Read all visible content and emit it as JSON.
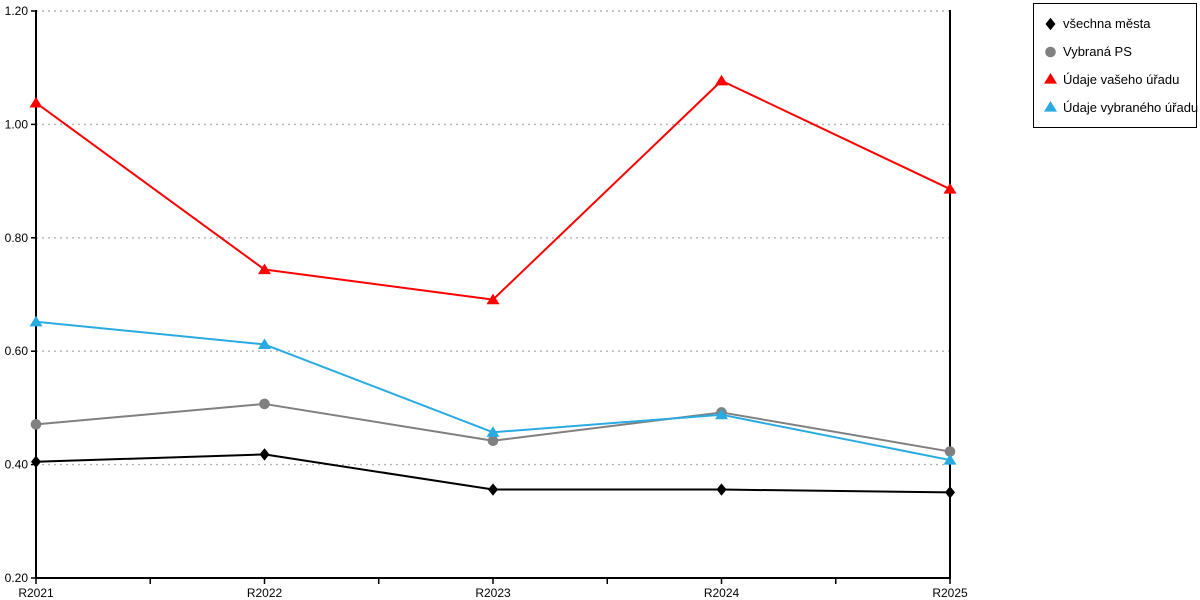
{
  "chart_data": {
    "type": "line",
    "title": "",
    "xlabel": "",
    "ylabel": "",
    "categories": [
      "R2021",
      "R2022",
      "R2023",
      "R2024",
      "R2025"
    ],
    "series": [
      {
        "name": "všechna města",
        "marker": "diamond",
        "color": "#000000",
        "values": [
          0.405,
          0.418,
          0.356,
          0.356,
          0.351
        ]
      },
      {
        "name": "Vybraná PS",
        "marker": "circle",
        "color": "#808080",
        "values": [
          0.471,
          0.507,
          0.442,
          0.492,
          0.423
        ]
      },
      {
        "name": "Údaje vašeho úřadu",
        "marker": "triangle",
        "color": "#ff0000",
        "values": [
          1.038,
          0.744,
          0.691,
          1.077,
          0.886
        ]
      },
      {
        "name": "Údaje vybraného úřadu",
        "marker": "triangle",
        "color": "#29abe2",
        "values": [
          0.652,
          0.612,
          0.457,
          0.488,
          0.408
        ]
      }
    ],
    "ylim": [
      0.2,
      1.2
    ],
    "yticks": [
      0.2,
      0.4,
      0.6,
      0.8,
      1.0,
      1.2
    ],
    "ytick_labels": [
      "0.20",
      "0.40",
      "0.60",
      "0.80",
      "1.00",
      "1.20"
    ],
    "grid": "horizontal-dotted",
    "minor_x_ticks_between_categories": true,
    "legend_position": "top-right",
    "colors": {
      "axis": "#000000",
      "gridline": "#b3b3b3",
      "background": "#ffffff",
      "text": "#000000"
    }
  }
}
